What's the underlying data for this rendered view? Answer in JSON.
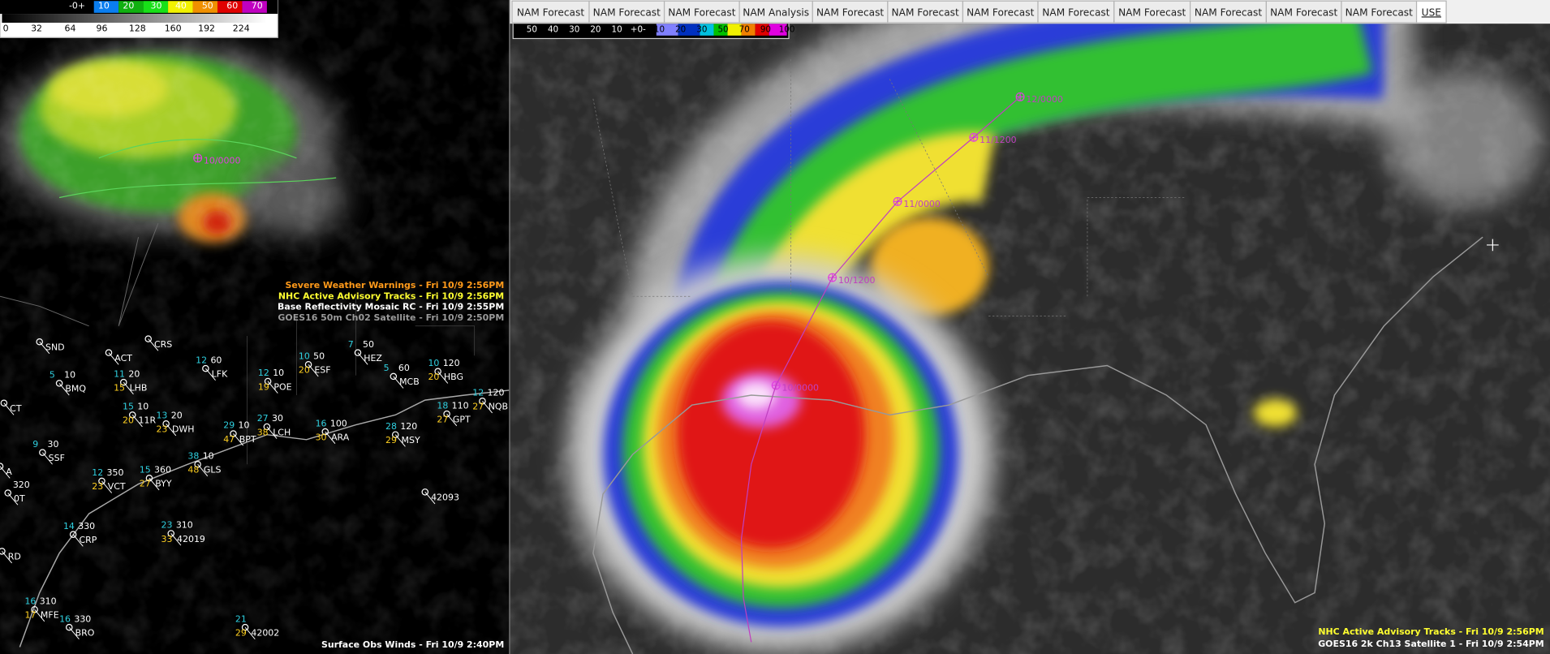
{
  "tabs": [
    "NAM Forecast",
    "NAM Forecast",
    "NAM Forecast",
    "NAM Analysis",
    "NAM Forecast",
    "NAM Forecast",
    "NAM Forecast",
    "NAM Forecast",
    "NAM Forecast",
    "NAM Forecast",
    "NAM Forecast",
    "NAM Forecast",
    "USE"
  ],
  "left_colorbar": {
    "top_labels": [
      "-0+",
      "10",
      "20",
      "30",
      "40",
      "50",
      "60",
      "70"
    ],
    "bottom_labels": [
      "0",
      "32",
      "64",
      "96",
      "128",
      "160",
      "192",
      "224"
    ]
  },
  "right_colorbar": {
    "labels": [
      "50",
      "40",
      "30",
      "20",
      "10",
      "+0-",
      "10",
      "20",
      "30",
      "50",
      "70",
      "90",
      "100"
    ]
  },
  "left_legend": [
    "Severe Weather Warnings - Fri 10/9 2:56PM",
    "NHC Active Advisory Tracks - Fri 10/9 2:56PM",
    "Base Reflectivity Mosaic RC - Fri 10/9 2:55PM",
    "GOES16 50m Ch02 Satellite - Fri 10/9 2:50PM"
  ],
  "left_footer": "Surface Obs Winds - Fri 10/9 2:40PM",
  "right_legend": [
    "NHC Active Advisory Tracks - Fri 10/9 2:56PM",
    "GOES16 2k Ch13 Satellite 1 - Fri 10/9 2:54PM"
  ],
  "left_track_labels": [
    "10/0000"
  ],
  "right_track_labels": [
    "12/0000",
    "11/1200",
    "11/0000",
    "10/1200",
    "10/0000"
  ],
  "stations": [
    {
      "id": "SND"
    },
    {
      "id": "ACT"
    },
    {
      "id": "CRS"
    },
    {
      "c": "12",
      "w": "60",
      "id": "LFK"
    },
    {
      "c": "7",
      "w": "50",
      "id": "HEZ"
    },
    {
      "c": "10",
      "w": "50",
      "y": "20",
      "id": "ESF"
    },
    {
      "c": "5",
      "w": "60",
      "id": "MCB"
    },
    {
      "c": "10",
      "w": "120",
      "y": "20",
      "id": "HBG"
    },
    {
      "c": "5",
      "w": "10",
      "id": "BMQ"
    },
    {
      "c": "11",
      "w": "20",
      "y": "15",
      "id": "LHB"
    },
    {
      "c": "12",
      "w": "10",
      "y": "19",
      "id": "POE"
    },
    {
      "c": "12",
      "w": "120",
      "y": "27",
      "id": "NQB"
    },
    {
      "c": "18",
      "w": "110",
      "y": "27",
      "id": "GPT"
    },
    {
      "c": "15",
      "w": "10",
      "y": "20",
      "id": "11R"
    },
    {
      "c": "13",
      "w": "20",
      "y": "23",
      "id": "DWH"
    },
    {
      "c": "29",
      "w": "10",
      "y": "47",
      "id": "BPT"
    },
    {
      "c": "27",
      "w": "30",
      "y": "38",
      "id": "LCH"
    },
    {
      "c": "16",
      "w": "100",
      "y": "30",
      "id": "ARA"
    },
    {
      "c": "28",
      "w": "120",
      "y": "29",
      "id": "MSY"
    },
    {
      "c": "9",
      "w": "30",
      "id": "SSF"
    },
    {
      "c": "38",
      "w": "10",
      "y": "48",
      "id": "GLS"
    },
    {
      "c": "12",
      "w": "350",
      "y": "23",
      "id": "VCT"
    },
    {
      "c": "15",
      "w": "360",
      "y": "27",
      "id": "BYY"
    },
    {
      "id": "42093"
    },
    {
      "c": "23",
      "w": "310",
      "y": "33",
      "id": "42019"
    },
    {
      "c": "14",
      "w": "330",
      "id": "CRP"
    },
    {
      "c": "16",
      "w": "310",
      "y": "17",
      "id": "MFE"
    },
    {
      "c": "16",
      "w": "330",
      "id": "BRO"
    },
    {
      "c": "21",
      "y": "29",
      "id": "42002"
    },
    {
      "id": "CT"
    },
    {
      "id": "A"
    },
    {
      "w": "320",
      "id": "0T"
    },
    {
      "id": "RD"
    }
  ]
}
